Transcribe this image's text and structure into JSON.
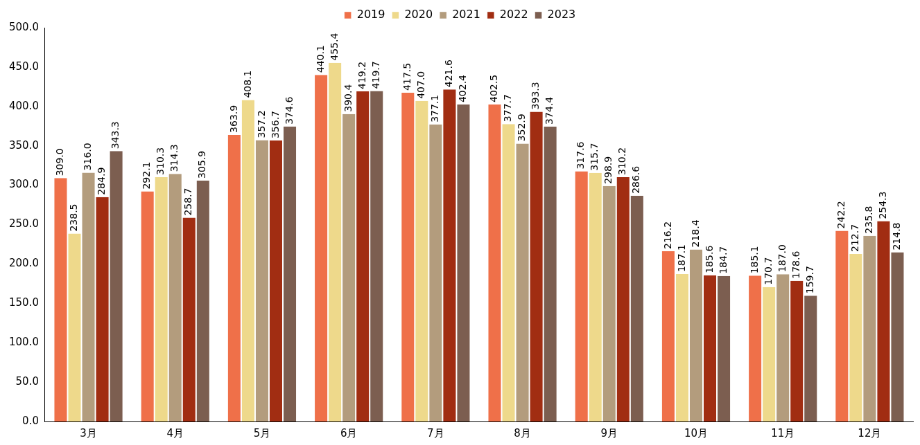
{
  "chart_data": {
    "type": "bar",
    "categories": [
      "3月",
      "4月",
      "5月",
      "6月",
      "7月",
      "8月",
      "9月",
      "10月",
      "11月",
      "12月"
    ],
    "series": [
      {
        "name": "2019",
        "color": "#ef7049",
        "values": [
          309.0,
          292.1,
          363.9,
          440.1,
          417.5,
          402.5,
          317.6,
          216.2,
          185.1,
          242.2
        ],
        "value_labels": [
          "309.0",
          "292.1",
          "363.9",
          "440.1",
          "417.5",
          "402.5",
          "317.6",
          "216.2",
          "185.1",
          "242.2"
        ]
      },
      {
        "name": "2020",
        "color": "#eed98b",
        "values": [
          238.5,
          310.3,
          408.1,
          455.4,
          407.0,
          377.7,
          315.7,
          187.1,
          170.7,
          212.7
        ],
        "value_labels": [
          "238.5",
          "310.3",
          "408.1",
          "455.4",
          "407.0",
          "377.7",
          "315.7",
          "187.1",
          "170.7",
          "212.7"
        ]
      },
      {
        "name": "2021",
        "color": "#b39c7d",
        "values": [
          316.0,
          314.3,
          357.2,
          390.4,
          377.1,
          352.9,
          298.9,
          218.4,
          187.0,
          235.8
        ],
        "value_labels": [
          "316.0",
          "314.3",
          "357.2",
          "390.4",
          "377.1",
          "352.9",
          "298.9",
          "218.4",
          "187.0",
          "235.8"
        ]
      },
      {
        "name": "2022",
        "color": "#a12d12",
        "values": [
          284.9,
          258.7,
          356.7,
          419.2,
          421.6,
          393.3,
          310.2,
          185.6,
          178.6,
          254.3
        ],
        "value_labels": [
          "284.9",
          "258.7",
          "356.7",
          "419.2",
          "421.6",
          "393.3",
          "310.2",
          "185.6",
          "178.6",
          "254.3"
        ]
      },
      {
        "name": "2023",
        "color": "#7c5e50",
        "values": [
          343.3,
          305.9,
          374.6,
          419.7,
          402.4,
          374.4,
          286.6,
          184.7,
          159.7,
          214.8
        ],
        "value_labels": [
          "343.3",
          "305.9",
          "374.6",
          "419.7",
          "402.4",
          "374.4",
          "286.6",
          "184.7",
          "159.7",
          "214.8"
        ]
      }
    ],
    "ylim": [
      0,
      500
    ],
    "yticks": [
      {
        "value": 0,
        "label": "0.0"
      },
      {
        "value": 50,
        "label": "50.0"
      },
      {
        "value": 100,
        "label": "100.0"
      },
      {
        "value": 150,
        "label": "150.0"
      },
      {
        "value": 200,
        "label": "200.0"
      },
      {
        "value": 250,
        "label": "250.0"
      },
      {
        "value": 300,
        "label": "300.0"
      },
      {
        "value": 350,
        "label": "350.0"
      },
      {
        "value": 400,
        "label": "400.0"
      },
      {
        "value": 450,
        "label": "450.0"
      },
      {
        "value": 500,
        "label": "500.0"
      }
    ],
    "grid": false,
    "legend": "top"
  }
}
